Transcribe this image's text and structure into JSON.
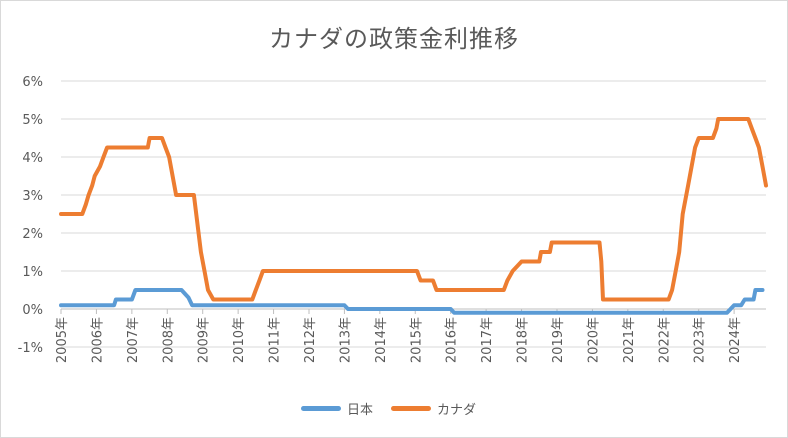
{
  "chart_data": {
    "type": "line",
    "title": "カナダの政策金利推移",
    "xlabel": "",
    "ylabel": "",
    "ylim": [
      -1,
      6
    ],
    "xlim": [
      2005,
      2024.8
    ],
    "y_ticks": [
      "-1%",
      "0%",
      "1%",
      "2%",
      "3%",
      "4%",
      "5%",
      "6%"
    ],
    "x_ticks": [
      "2005年",
      "2006年",
      "2007年",
      "2008年",
      "2009年",
      "2010年",
      "2011年",
      "2012年",
      "2013年",
      "2014年",
      "2015年",
      "2016年",
      "2017年",
      "2018年",
      "2019年",
      "2020年",
      "2021年",
      "2022年",
      "2023年",
      "2024年"
    ],
    "grid": true,
    "legend_position": "bottom",
    "series": [
      {
        "name": "日本",
        "color": "#5b9bd5",
        "points": [
          [
            2005.0,
            0.1
          ],
          [
            2006.5,
            0.1
          ],
          [
            2006.55,
            0.25
          ],
          [
            2007.0,
            0.25
          ],
          [
            2007.1,
            0.5
          ],
          [
            2008.4,
            0.5
          ],
          [
            2008.6,
            0.3
          ],
          [
            2008.7,
            0.1
          ],
          [
            2013.0,
            0.1
          ],
          [
            2013.1,
            0.0
          ],
          [
            2016.0,
            0.0
          ],
          [
            2016.1,
            -0.1
          ],
          [
            2023.8,
            -0.1
          ],
          [
            2024.0,
            0.1
          ],
          [
            2024.2,
            0.1
          ],
          [
            2024.3,
            0.25
          ],
          [
            2024.55,
            0.25
          ],
          [
            2024.6,
            0.5
          ],
          [
            2024.8,
            0.5
          ]
        ]
      },
      {
        "name": "カナダ",
        "color": "#ed7d31",
        "points": [
          [
            2005.0,
            2.5
          ],
          [
            2005.6,
            2.5
          ],
          [
            2005.7,
            2.75
          ],
          [
            2005.78,
            3.0
          ],
          [
            2005.88,
            3.25
          ],
          [
            2005.95,
            3.5
          ],
          [
            2006.1,
            3.75
          ],
          [
            2006.2,
            4.0
          ],
          [
            2006.3,
            4.25
          ],
          [
            2007.45,
            4.25
          ],
          [
            2007.5,
            4.5
          ],
          [
            2007.85,
            4.5
          ],
          [
            2007.95,
            4.25
          ],
          [
            2008.05,
            4.0
          ],
          [
            2008.15,
            3.5
          ],
          [
            2008.25,
            3.0
          ],
          [
            2008.75,
            3.0
          ],
          [
            2008.85,
            2.25
          ],
          [
            2008.95,
            1.5
          ],
          [
            2009.05,
            1.0
          ],
          [
            2009.15,
            0.5
          ],
          [
            2009.3,
            0.25
          ],
          [
            2010.4,
            0.25
          ],
          [
            2010.5,
            0.5
          ],
          [
            2010.6,
            0.75
          ],
          [
            2010.7,
            1.0
          ],
          [
            2015.05,
            1.0
          ],
          [
            2015.15,
            0.75
          ],
          [
            2015.5,
            0.75
          ],
          [
            2015.6,
            0.5
          ],
          [
            2017.5,
            0.5
          ],
          [
            2017.6,
            0.75
          ],
          [
            2017.75,
            1.0
          ],
          [
            2018.0,
            1.25
          ],
          [
            2018.5,
            1.25
          ],
          [
            2018.55,
            1.5
          ],
          [
            2018.8,
            1.5
          ],
          [
            2018.85,
            1.75
          ],
          [
            2020.2,
            1.75
          ],
          [
            2020.25,
            1.25
          ],
          [
            2020.3,
            0.25
          ],
          [
            2022.15,
            0.25
          ],
          [
            2022.25,
            0.5
          ],
          [
            2022.35,
            1.0
          ],
          [
            2022.45,
            1.5
          ],
          [
            2022.55,
            2.5
          ],
          [
            2022.7,
            3.25
          ],
          [
            2022.8,
            3.75
          ],
          [
            2022.9,
            4.25
          ],
          [
            2023.0,
            4.5
          ],
          [
            2023.4,
            4.5
          ],
          [
            2023.5,
            4.75
          ],
          [
            2023.55,
            5.0
          ],
          [
            2024.4,
            5.0
          ],
          [
            2024.5,
            4.75
          ],
          [
            2024.6,
            4.5
          ],
          [
            2024.7,
            4.25
          ],
          [
            2024.8,
            3.75
          ],
          [
            2024.9,
            3.25
          ],
          [
            2025.0,
            3.0
          ],
          [
            2025.15,
            2.75
          ]
        ]
      }
    ]
  }
}
